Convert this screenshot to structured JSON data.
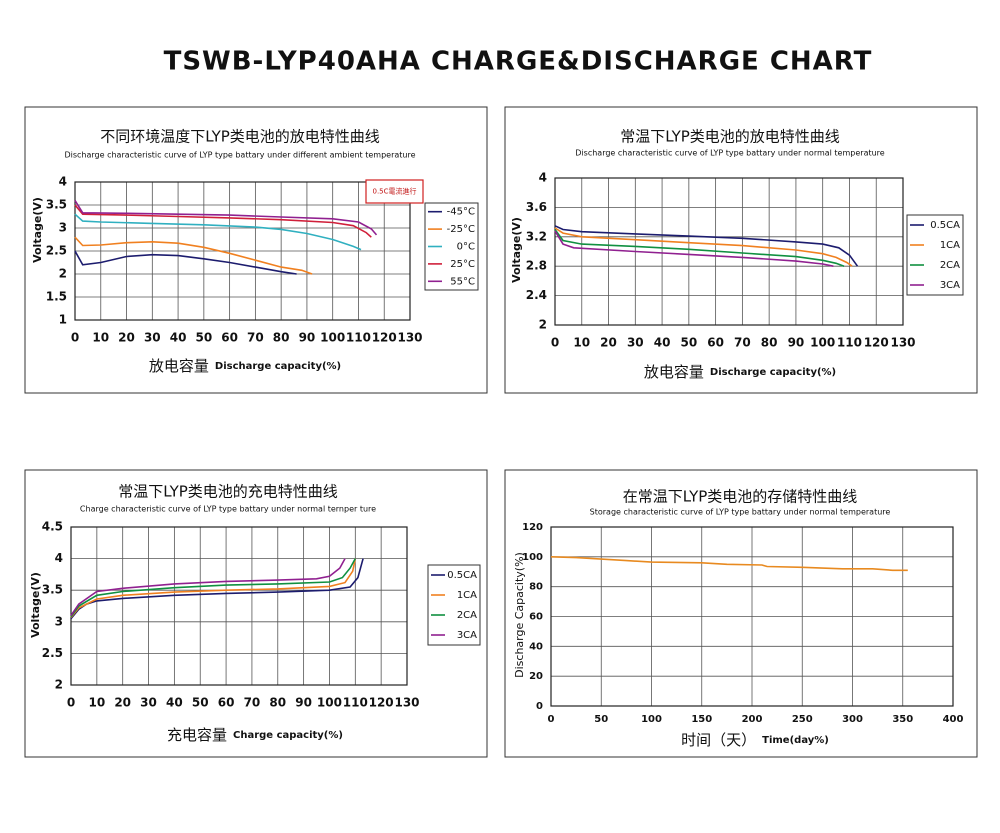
{
  "title": "TSWB-LYP40AHA CHARGE&DISCHARGE CHART",
  "chart_data": [
    {
      "type": "line",
      "title": "不同环境温度下LYP类电池的放电特性曲线",
      "subtitle": "Discharge characteristic curve of LYP type battary under different ambient temperature",
      "annotation": "0.5C電流進行",
      "ylabel": "Voltage(V)",
      "xlabel": [
        "放电容量",
        "Discharge capacity(%)"
      ],
      "xlim": [
        0,
        130
      ],
      "xticks": [
        0,
        10,
        20,
        30,
        40,
        50,
        60,
        70,
        80,
        90,
        100,
        110,
        120,
        130
      ],
      "ylim": [
        1,
        4
      ],
      "yticks": [
        1,
        1.5,
        2,
        2.5,
        3,
        3.5,
        4
      ],
      "grid": true,
      "legend": "right",
      "series": [
        {
          "name": "-45°C",
          "color": "#1c1c6e",
          "x": [
            0,
            3,
            10,
            20,
            30,
            40,
            50,
            60,
            70,
            80,
            86
          ],
          "values": [
            2.5,
            2.2,
            2.25,
            2.38,
            2.42,
            2.4,
            2.33,
            2.25,
            2.15,
            2.05,
            2.0
          ]
        },
        {
          "name": "-25°C",
          "color": "#f08020",
          "x": [
            0,
            3,
            10,
            20,
            30,
            40,
            50,
            60,
            70,
            80,
            88,
            92
          ],
          "values": [
            2.8,
            2.62,
            2.63,
            2.68,
            2.7,
            2.67,
            2.58,
            2.45,
            2.3,
            2.15,
            2.08,
            2.0
          ]
        },
        {
          "name": "0°C",
          "color": "#30b0c0",
          "x": [
            0,
            3,
            10,
            30,
            50,
            70,
            80,
            90,
            100,
            108,
            111
          ],
          "values": [
            3.3,
            3.15,
            3.13,
            3.1,
            3.07,
            3.02,
            2.97,
            2.88,
            2.75,
            2.6,
            2.53
          ]
        },
        {
          "name": "25°C",
          "color": "#d0203a",
          "x": [
            0,
            3,
            20,
            40,
            60,
            80,
            100,
            108,
            113,
            115
          ],
          "values": [
            3.5,
            3.3,
            3.28,
            3.25,
            3.22,
            3.18,
            3.12,
            3.05,
            2.9,
            2.8
          ]
        },
        {
          "name": "55°C",
          "color": "#902090",
          "x": [
            0,
            3,
            20,
            40,
            60,
            80,
            100,
            110,
            115,
            117
          ],
          "values": [
            3.6,
            3.33,
            3.32,
            3.3,
            3.28,
            3.24,
            3.2,
            3.13,
            2.98,
            2.85
          ]
        }
      ]
    },
    {
      "type": "line",
      "title": "常温下LYP类电池的放电特性曲线",
      "subtitle": "Discharge characteristic curve of LYP type battary under normal temperature",
      "ylabel": "Voltage(V)",
      "xlabel": [
        "放电容量",
        "Discharge capacity(%)"
      ],
      "xlim": [
        0,
        130
      ],
      "xticks": [
        0,
        10,
        20,
        30,
        40,
        50,
        60,
        70,
        80,
        90,
        100,
        110,
        120,
        130
      ],
      "ylim": [
        2,
        4
      ],
      "yticks": [
        2,
        2.4,
        2.8,
        3.2,
        3.6,
        4
      ],
      "grid": true,
      "legend": "right",
      "series": [
        {
          "name": "0.5CA",
          "color": "#1c1c6e",
          "x": [
            0,
            3,
            10,
            30,
            50,
            70,
            90,
            100,
            106,
            110,
            113
          ],
          "values": [
            3.35,
            3.3,
            3.27,
            3.24,
            3.21,
            3.18,
            3.13,
            3.1,
            3.05,
            2.95,
            2.8
          ]
        },
        {
          "name": "1CA",
          "color": "#f08020",
          "x": [
            0,
            3,
            10,
            30,
            50,
            70,
            90,
            100,
            105,
            109,
            111
          ],
          "values": [
            3.32,
            3.25,
            3.2,
            3.16,
            3.12,
            3.08,
            3.02,
            2.97,
            2.92,
            2.85,
            2.8
          ]
        },
        {
          "name": "2CA",
          "color": "#109040",
          "x": [
            0,
            3,
            10,
            30,
            50,
            70,
            90,
            100,
            105,
            108
          ],
          "values": [
            3.3,
            3.15,
            3.1,
            3.07,
            3.03,
            2.98,
            2.93,
            2.88,
            2.84,
            2.8
          ]
        },
        {
          "name": "3CA",
          "color": "#902090",
          "x": [
            0,
            3,
            7,
            30,
            50,
            70,
            90,
            100,
            104
          ],
          "values": [
            3.28,
            3.1,
            3.05,
            3.0,
            2.96,
            2.92,
            2.87,
            2.83,
            2.8
          ]
        }
      ]
    },
    {
      "type": "line",
      "title": "常温下LYP类电池的充电特性曲线",
      "subtitle": "Charge characteristic curve of LYP type battary under normal ternper ture",
      "ylabel": "Voltage(V)",
      "xlabel": [
        "充电容量",
        "Charge capacity(%)"
      ],
      "xlim": [
        0,
        130
      ],
      "xticks": [
        0,
        10,
        20,
        30,
        40,
        50,
        60,
        70,
        80,
        90,
        100,
        110,
        120,
        130
      ],
      "ylim": [
        2,
        4.5
      ],
      "yticks": [
        2,
        2.5,
        3,
        3.5,
        4,
        4.5
      ],
      "grid": true,
      "legend": "right",
      "series": [
        {
          "name": "0.5CA",
          "color": "#1c1c6e",
          "x": [
            0,
            3,
            6,
            10,
            20,
            40,
            60,
            80,
            100,
            108,
            111,
            113
          ],
          "values": [
            3.05,
            3.2,
            3.28,
            3.33,
            3.37,
            3.42,
            3.45,
            3.47,
            3.5,
            3.55,
            3.7,
            4.0
          ]
        },
        {
          "name": "1CA",
          "color": "#f08020",
          "x": [
            0,
            3,
            10,
            20,
            40,
            60,
            80,
            100,
            106,
            109,
            110
          ],
          "values": [
            3.07,
            3.22,
            3.36,
            3.42,
            3.47,
            3.5,
            3.52,
            3.56,
            3.62,
            3.8,
            4.0
          ]
        },
        {
          "name": "2CA",
          "color": "#109040",
          "x": [
            0,
            3,
            10,
            20,
            40,
            60,
            80,
            100,
            105,
            108,
            110
          ],
          "values": [
            3.08,
            3.25,
            3.42,
            3.48,
            3.54,
            3.58,
            3.6,
            3.63,
            3.7,
            3.85,
            4.0
          ]
        },
        {
          "name": "3CA",
          "color": "#902090",
          "x": [
            0,
            3,
            10,
            20,
            40,
            60,
            80,
            95,
            100,
            104,
            106
          ],
          "values": [
            3.1,
            3.28,
            3.48,
            3.53,
            3.6,
            3.64,
            3.66,
            3.68,
            3.72,
            3.85,
            4.0
          ]
        }
      ]
    },
    {
      "type": "line",
      "title": "在常温下LYP类电池的存储特性曲线",
      "subtitle": "Storage characteristic curve of LYP type battary under normal temperature",
      "ylabel": "Discharge Capacity(%)",
      "xlabel": [
        "时间（天）",
        "Time(day%)"
      ],
      "xlim": [
        0,
        400
      ],
      "xticks": [
        0,
        50,
        100,
        150,
        200,
        250,
        300,
        350,
        400
      ],
      "ylim": [
        0,
        120
      ],
      "yticks": [
        0,
        20,
        40,
        60,
        80,
        100,
        120
      ],
      "grid": true,
      "color": "#e88a20",
      "x": [
        0,
        25,
        50,
        75,
        100,
        150,
        175,
        210,
        215,
        250,
        290,
        320,
        340,
        355
      ],
      "values": [
        100,
        99.5,
        98.5,
        97.5,
        96.5,
        96,
        95,
        94.5,
        93.5,
        93,
        92,
        92,
        91,
        91
      ]
    }
  ]
}
